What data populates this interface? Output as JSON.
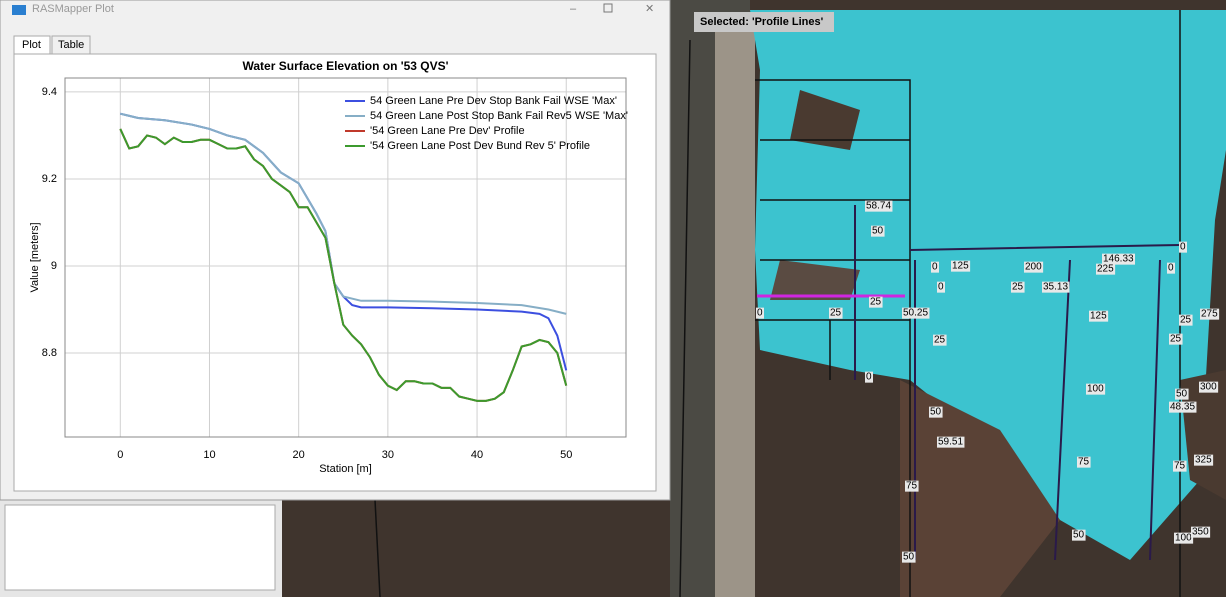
{
  "window": {
    "title": "RASMapper Plot",
    "tabs": [
      "Plot",
      "Table"
    ]
  },
  "chart_data": {
    "type": "line",
    "title": "Water Surface Elevation on '53 QVS'",
    "x_label": "Station [m]",
    "y_label": "Value [meters]",
    "xlim": [
      -6.2,
      56.7
    ],
    "xticks": [
      0,
      10,
      20,
      30,
      40,
      50
    ],
    "ylim": [
      8.607,
      9.432
    ],
    "yticks": [
      8.8,
      9,
      9.2,
      9.4
    ],
    "grid": true,
    "legend": "upper right",
    "series": [
      {
        "name": "54 Green Lane Pre Dev Stop Bank Fail WSE 'Max'",
        "color": "#3c4fe0",
        "x": [
          0,
          2,
          5,
          8,
          10,
          12,
          14,
          16,
          18,
          20,
          22,
          23,
          24,
          25,
          26,
          27,
          30,
          35,
          40,
          45,
          47,
          48,
          49,
          50
        ],
        "values": [
          9.35,
          9.34,
          9.335,
          9.325,
          9.315,
          9.3,
          9.29,
          9.26,
          9.215,
          9.19,
          9.12,
          9.08,
          8.96,
          8.93,
          8.91,
          8.905,
          8.905,
          8.903,
          8.9,
          8.895,
          8.89,
          8.88,
          8.84,
          8.76
        ]
      },
      {
        "name": "54 Green Lane Post Stop Bank Fail Rev5 WSE 'Max'",
        "color": "#86aec6",
        "x": [
          0,
          2,
          5,
          8,
          10,
          12,
          14,
          16,
          18,
          20,
          22,
          23,
          24,
          25,
          27,
          30,
          35,
          40,
          45,
          48,
          50
        ],
        "values": [
          9.35,
          9.34,
          9.335,
          9.325,
          9.315,
          9.3,
          9.29,
          9.26,
          9.215,
          9.19,
          9.12,
          9.08,
          8.96,
          8.93,
          8.92,
          8.92,
          8.918,
          8.915,
          8.91,
          8.9,
          8.89
        ]
      },
      {
        "name": "'54 Green Lane Pre Dev' Profile",
        "color": "#c0392b",
        "x": [
          0,
          1,
          2,
          3,
          4,
          5,
          6,
          7,
          8,
          9,
          10,
          11,
          12,
          13,
          14,
          15,
          16,
          17,
          18,
          19,
          20,
          21,
          22,
          23,
          24,
          25,
          26,
          27,
          28,
          29,
          30,
          31,
          32,
          33,
          34,
          35,
          36,
          37,
          38,
          39,
          40,
          41,
          42,
          43,
          44,
          45,
          46,
          47,
          48,
          49,
          50
        ],
        "values": [
          9.315,
          9.27,
          9.275,
          9.3,
          9.295,
          9.28,
          9.295,
          9.285,
          9.285,
          9.29,
          9.29,
          9.28,
          9.27,
          9.27,
          9.275,
          9.245,
          9.23,
          9.2,
          9.185,
          9.17,
          9.135,
          9.135,
          9.1,
          9.065,
          8.96,
          8.865,
          8.84,
          8.82,
          8.79,
          8.75,
          8.725,
          8.715,
          8.735,
          8.735,
          8.73,
          8.73,
          8.72,
          8.72,
          8.7,
          8.695,
          8.69,
          8.69,
          8.695,
          8.71,
          8.76,
          8.815,
          8.82,
          8.83,
          8.825,
          8.8,
          8.725
        ]
      },
      {
        "name": "'54 Green Lane Post Dev Bund Rev 5' Profile",
        "color": "#3c9a2e",
        "x": [
          0,
          1,
          2,
          3,
          4,
          5,
          6,
          7,
          8,
          9,
          10,
          11,
          12,
          13,
          14,
          15,
          16,
          17,
          18,
          19,
          20,
          21,
          22,
          23,
          24,
          25,
          26,
          27,
          28,
          29,
          30,
          31,
          32,
          33,
          34,
          35,
          36,
          37,
          38,
          39,
          40,
          41,
          42,
          43,
          44,
          45,
          46,
          47,
          48,
          49,
          50
        ],
        "values": [
          9.315,
          9.27,
          9.275,
          9.3,
          9.295,
          9.28,
          9.295,
          9.285,
          9.285,
          9.29,
          9.29,
          9.28,
          9.27,
          9.27,
          9.275,
          9.245,
          9.23,
          9.2,
          9.185,
          9.17,
          9.135,
          9.135,
          9.1,
          9.065,
          8.96,
          8.865,
          8.84,
          8.82,
          8.79,
          8.75,
          8.725,
          8.715,
          8.735,
          8.735,
          8.73,
          8.73,
          8.72,
          8.72,
          8.7,
          8.695,
          8.69,
          8.69,
          8.695,
          8.71,
          8.76,
          8.815,
          8.82,
          8.83,
          8.825,
          8.8,
          8.725
        ]
      }
    ]
  },
  "map": {
    "selected": "Selected: 'Profile Lines'",
    "labels": [
      "58.74",
      "50",
      "25",
      "0",
      "25",
      "50.25",
      "0",
      "0",
      "125",
      "200",
      "146.33",
      "225",
      "0",
      "0",
      "0",
      "25",
      "35.13",
      "125",
      "25",
      "275",
      "25",
      "100",
      "50",
      "300",
      "48.35",
      "75",
      "75",
      "325",
      "50",
      "100",
      "350",
      "25",
      "50",
      "59.51",
      "75",
      "50"
    ]
  }
}
